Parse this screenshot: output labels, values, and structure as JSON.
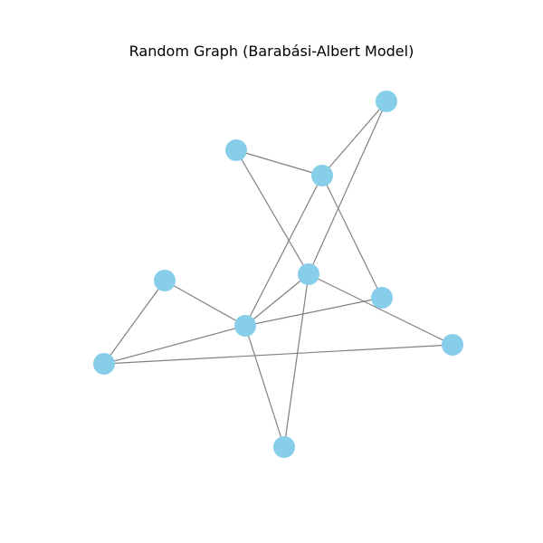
{
  "title": "Random Graph (Barabási-Albert Model)",
  "colors": {
    "node_fill": "#87ceeb",
    "edge_stroke": "#808080",
    "background": "#ffffff"
  },
  "graph": {
    "nodes": [
      {
        "id": "n0"
      },
      {
        "id": "n1"
      },
      {
        "id": "n2"
      },
      {
        "id": "n3"
      },
      {
        "id": "n4"
      },
      {
        "id": "n5"
      },
      {
        "id": "n6"
      },
      {
        "id": "n7"
      },
      {
        "id": "n8"
      },
      {
        "id": "n9"
      }
    ],
    "edges": [
      [
        "n1",
        "n3"
      ],
      [
        "n0",
        "n3"
      ],
      [
        "n0",
        "n6"
      ],
      [
        "n3",
        "n5"
      ],
      [
        "n3",
        "n7"
      ],
      [
        "n2",
        "n7"
      ],
      [
        "n2",
        "n4"
      ],
      [
        "n4",
        "n7"
      ],
      [
        "n4",
        "n8"
      ],
      [
        "n5",
        "n7"
      ],
      [
        "n6",
        "n7"
      ],
      [
        "n1",
        "n6"
      ],
      [
        "n6",
        "n9"
      ],
      [
        "n6",
        "n8"
      ],
      [
        "n7",
        "n9"
      ]
    ]
  }
}
